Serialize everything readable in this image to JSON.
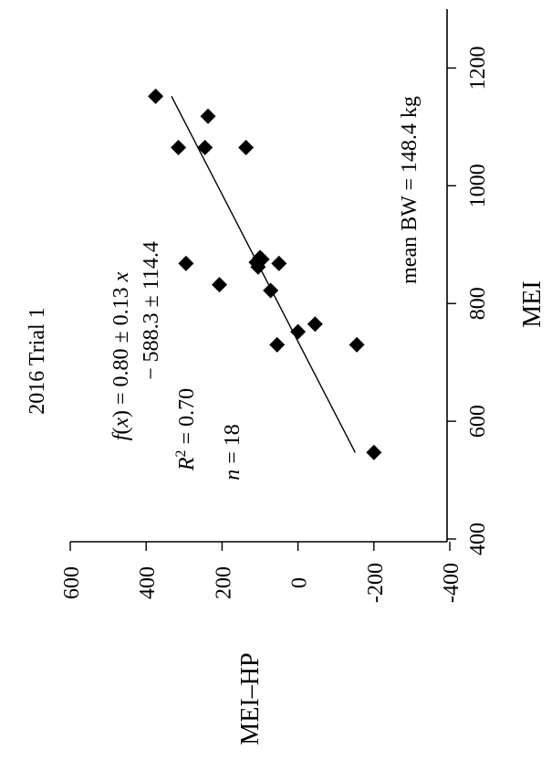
{
  "chart_data": {
    "type": "scatter",
    "title": "2016  Trial 1",
    "xlabel": "MEI",
    "ylabel": "MEI–HP",
    "xlim": [
      400,
      1300
    ],
    "ylim": [
      -400,
      600
    ],
    "x_ticks": [
      "400",
      "600",
      "800",
      "1000",
      "1200"
    ],
    "y_ticks": [
      "600",
      "400",
      "200",
      "0",
      "-200",
      "-400"
    ],
    "grid": false,
    "orientation": "rotated 90° counter-clockwise",
    "series": [
      {
        "points": [
          {
            "x": 547,
            "y": -200
          },
          {
            "x": 730,
            "y": -155
          },
          {
            "x": 765,
            "y": -45
          },
          {
            "x": 752,
            "y": 0
          },
          {
            "x": 730,
            "y": 55
          },
          {
            "x": 822,
            "y": 72
          },
          {
            "x": 868,
            "y": 50
          },
          {
            "x": 862,
            "y": 105
          },
          {
            "x": 875,
            "y": 95
          },
          {
            "x": 868,
            "y": 295
          },
          {
            "x": 832,
            "y": 207
          },
          {
            "x": 1065,
            "y": 315
          },
          {
            "x": 1065,
            "y": 245
          },
          {
            "x": 1065,
            "y": 137
          },
          {
            "x": 1118,
            "y": 237
          },
          {
            "x": 1152,
            "y": 375
          },
          {
            "x": 878,
            "y": 100
          },
          {
            "x": 870,
            "y": 110
          }
        ]
      }
    ],
    "fit_line": {
      "x1": 547,
      "x2": 1152,
      "slope": 0.8,
      "intercept": -588.3
    },
    "annotations": {
      "equation_line1_a": "f",
      "equation_line1_b": "(",
      "equation_line1_c": "x",
      "equation_line1_d": ") = 0.80 ± 0.13 ",
      "equation_line1_e": "x",
      "equation_line2": "− 588.3 ± 114.4",
      "r2_a": "R",
      "r2_b": "2",
      "r2_c": " = 0.70",
      "n_a": "n",
      "n_b": " = 18",
      "mean_bw": "mean BW = 148.4 kg"
    }
  }
}
